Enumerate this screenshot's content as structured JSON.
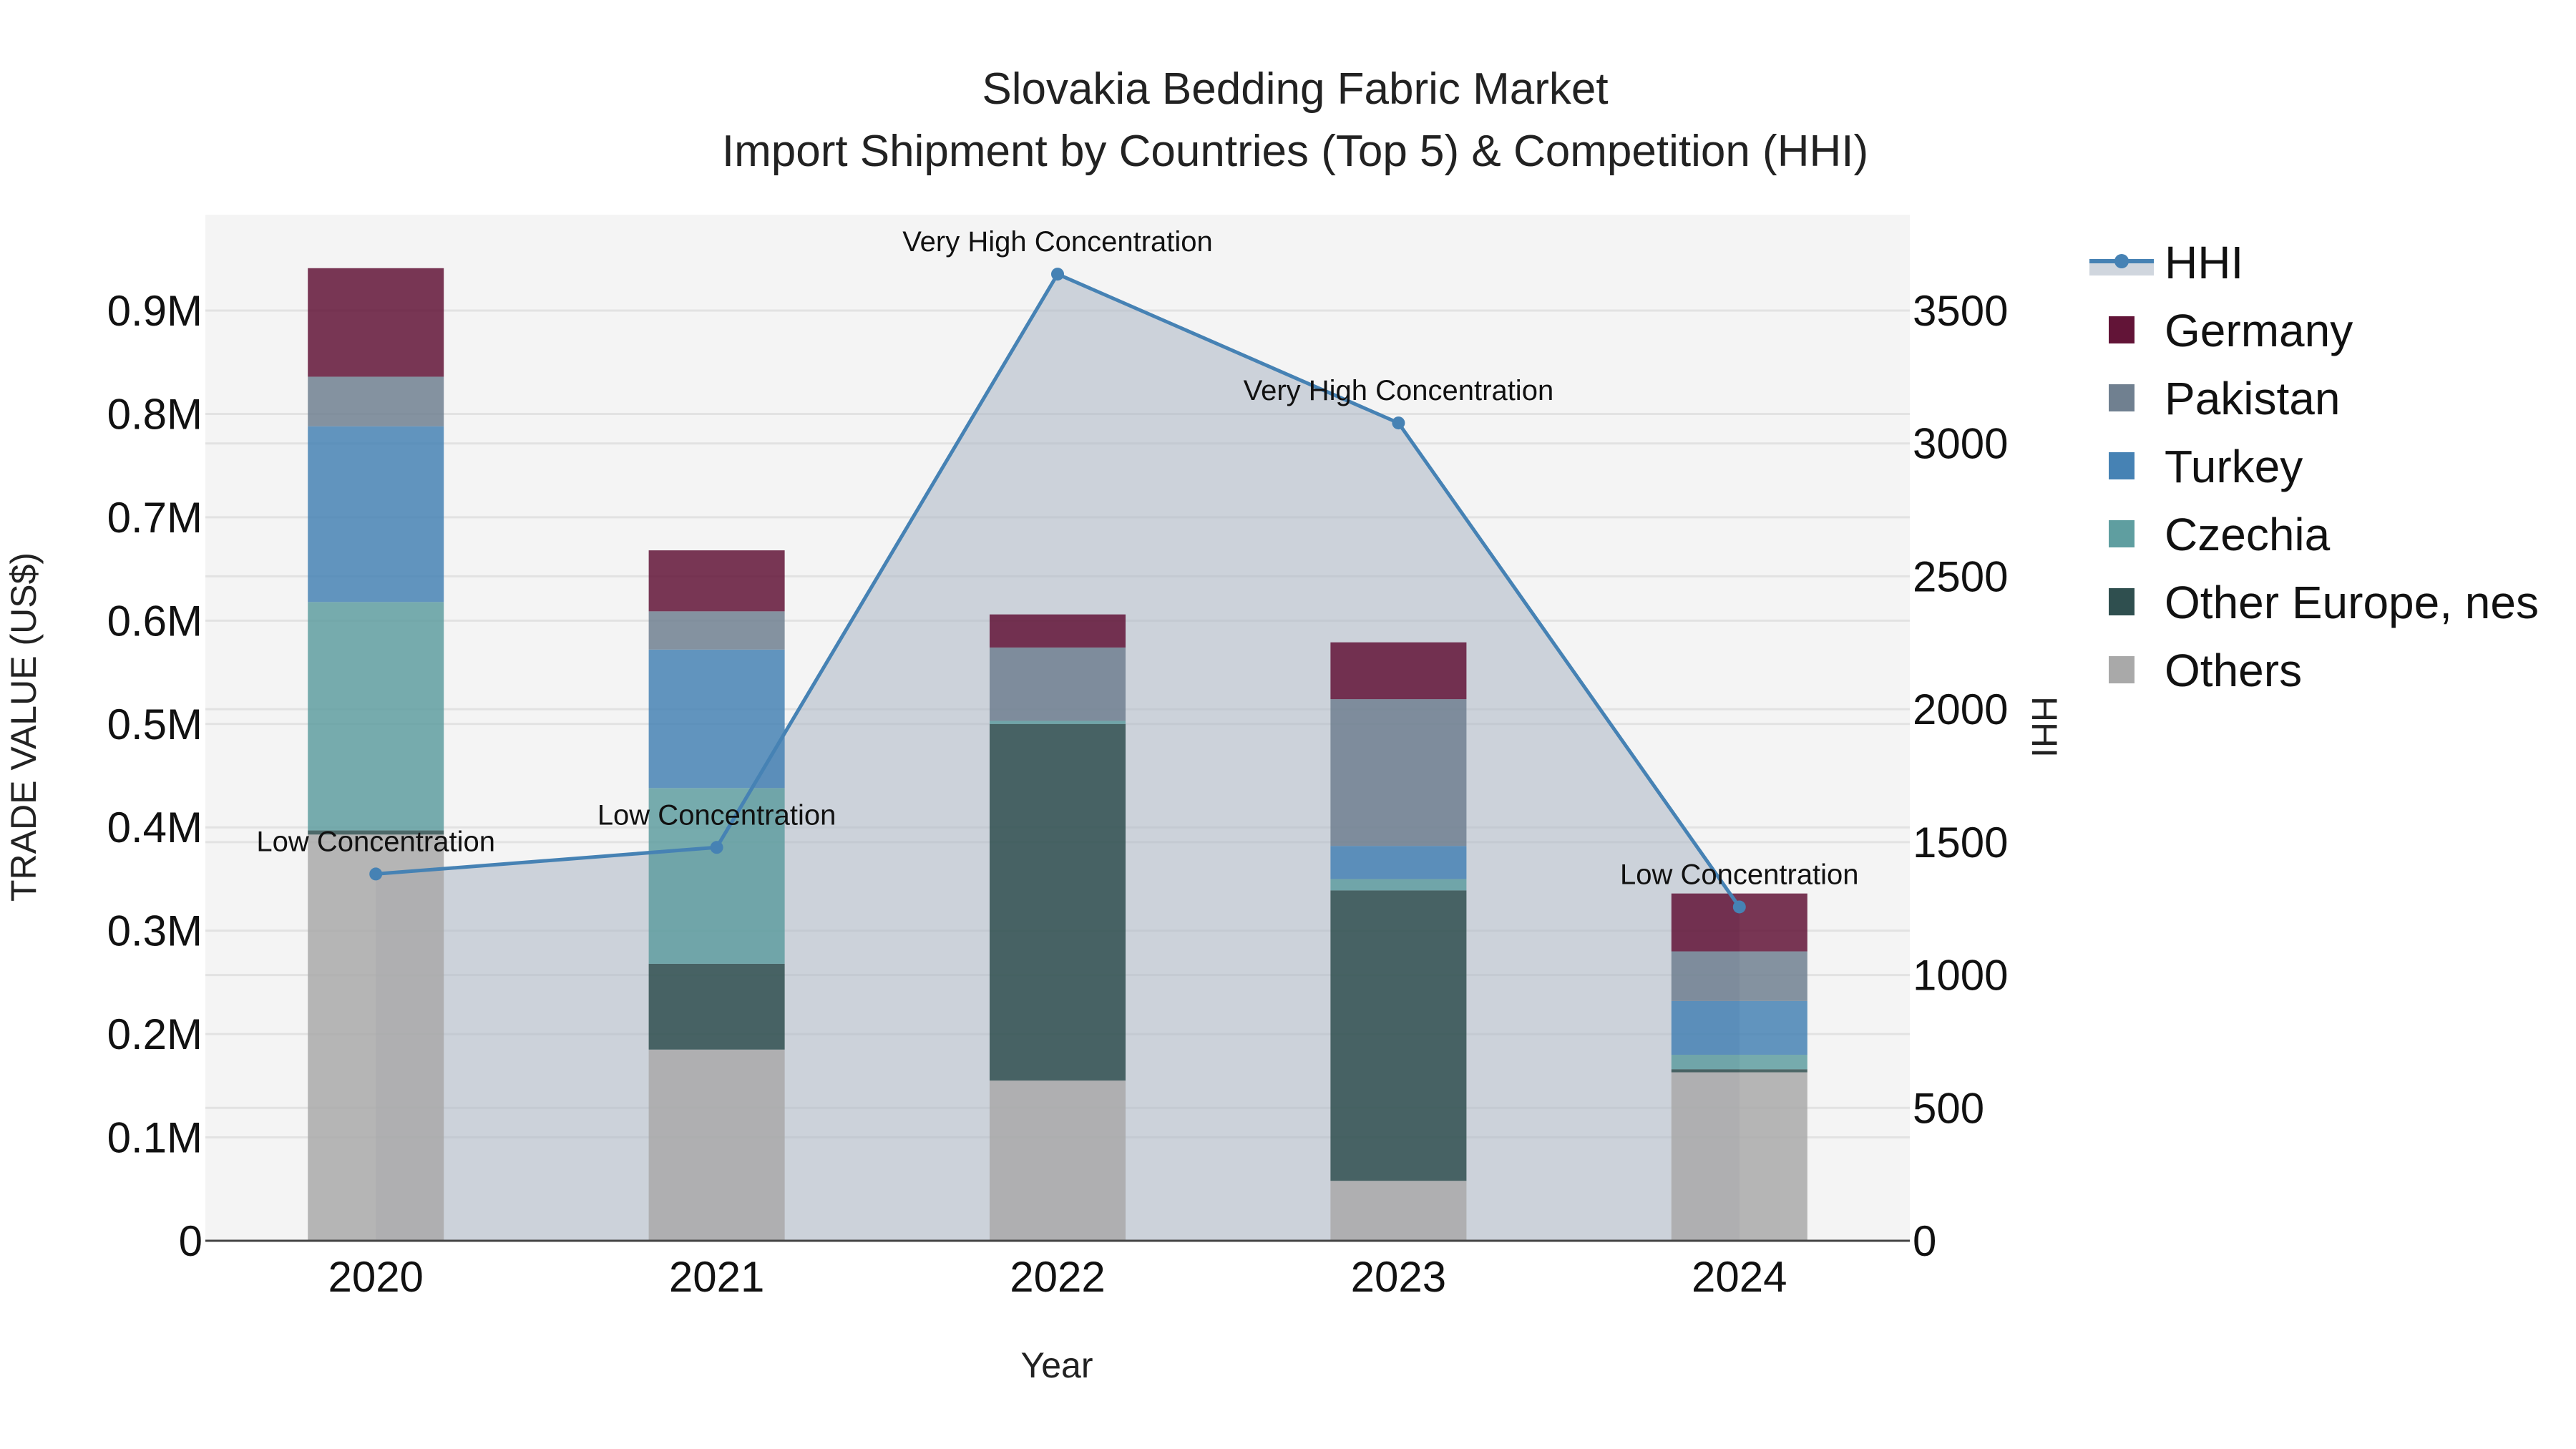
{
  "chart_data": {
    "type": "bar",
    "stacked": true,
    "title": "Slovakia Bedding Fabric Market",
    "subtitle": "Import Shipment by Countries (Top 5) & Competition (HHI)",
    "xlabel": "Year",
    "ylabel": "TRADE VALUE (US$)",
    "y2label": "HHI",
    "categories": [
      "2020",
      "2021",
      "2022",
      "2023",
      "2024"
    ],
    "ylim": [
      0,
      985000
    ],
    "y2lim": [
      0,
      3830
    ],
    "yticks": [
      {
        "value": 0,
        "label": "0"
      },
      {
        "value": 100000,
        "label": "0.1M"
      },
      {
        "value": 200000,
        "label": "0.2M"
      },
      {
        "value": 300000,
        "label": "0.3M"
      },
      {
        "value": 400000,
        "label": "0.4M"
      },
      {
        "value": 500000,
        "label": "0.5M"
      },
      {
        "value": 600000,
        "label": "0.6M"
      },
      {
        "value": 700000,
        "label": "0.7M"
      },
      {
        "value": 800000,
        "label": "0.8M"
      },
      {
        "value": 900000,
        "label": "0.9M"
      }
    ],
    "y2ticks": [
      {
        "value": 0,
        "label": "0"
      },
      {
        "value": 500,
        "label": "500"
      },
      {
        "value": 1000,
        "label": "1000"
      },
      {
        "value": 1500,
        "label": "1500"
      },
      {
        "value": 2000,
        "label": "2000"
      },
      {
        "value": 2500,
        "label": "2500"
      },
      {
        "value": 3000,
        "label": "3000"
      },
      {
        "value": 3500,
        "label": "3500"
      }
    ],
    "series": [
      {
        "name": "Others",
        "color": "#A9A9A9",
        "values": [
          393000,
          185000,
          155000,
          58000,
          163000
        ]
      },
      {
        "name": "Other Europe, nes",
        "color": "#2F4F4F",
        "values": [
          4000,
          83000,
          345000,
          281000,
          3000
        ]
      },
      {
        "name": "Czechia",
        "color": "#5F9EA0",
        "values": [
          221000,
          170000,
          3000,
          11000,
          14000
        ]
      },
      {
        "name": "Turkey",
        "color": "#4682B4",
        "values": [
          170000,
          134000,
          0,
          32000,
          52000
        ]
      },
      {
        "name": "Pakistan",
        "color": "#708090",
        "values": [
          48000,
          37000,
          71000,
          142000,
          48000
        ]
      },
      {
        "name": "Germany",
        "color": "#621437",
        "values": [
          105000,
          59000,
          32000,
          55000,
          56000
        ]
      }
    ],
    "line": {
      "name": "HHI",
      "axis": "right",
      "color": "#4682B4",
      "fill": "rgba(176,186,200,0.6)",
      "values": [
        1380,
        1480,
        3637,
        3077,
        1256
      ],
      "annotations": [
        "Low Concentration",
        "Low Concentration",
        "Very High Concentration",
        "Very High Concentration",
        "Low Concentration"
      ]
    },
    "legend": {
      "position": "right",
      "items": [
        "HHI",
        "Germany",
        "Pakistan",
        "Turkey",
        "Czechia",
        "Other Europe, nes",
        "Others"
      ]
    },
    "grid": true,
    "plot_bg": "#F4F4F4"
  }
}
